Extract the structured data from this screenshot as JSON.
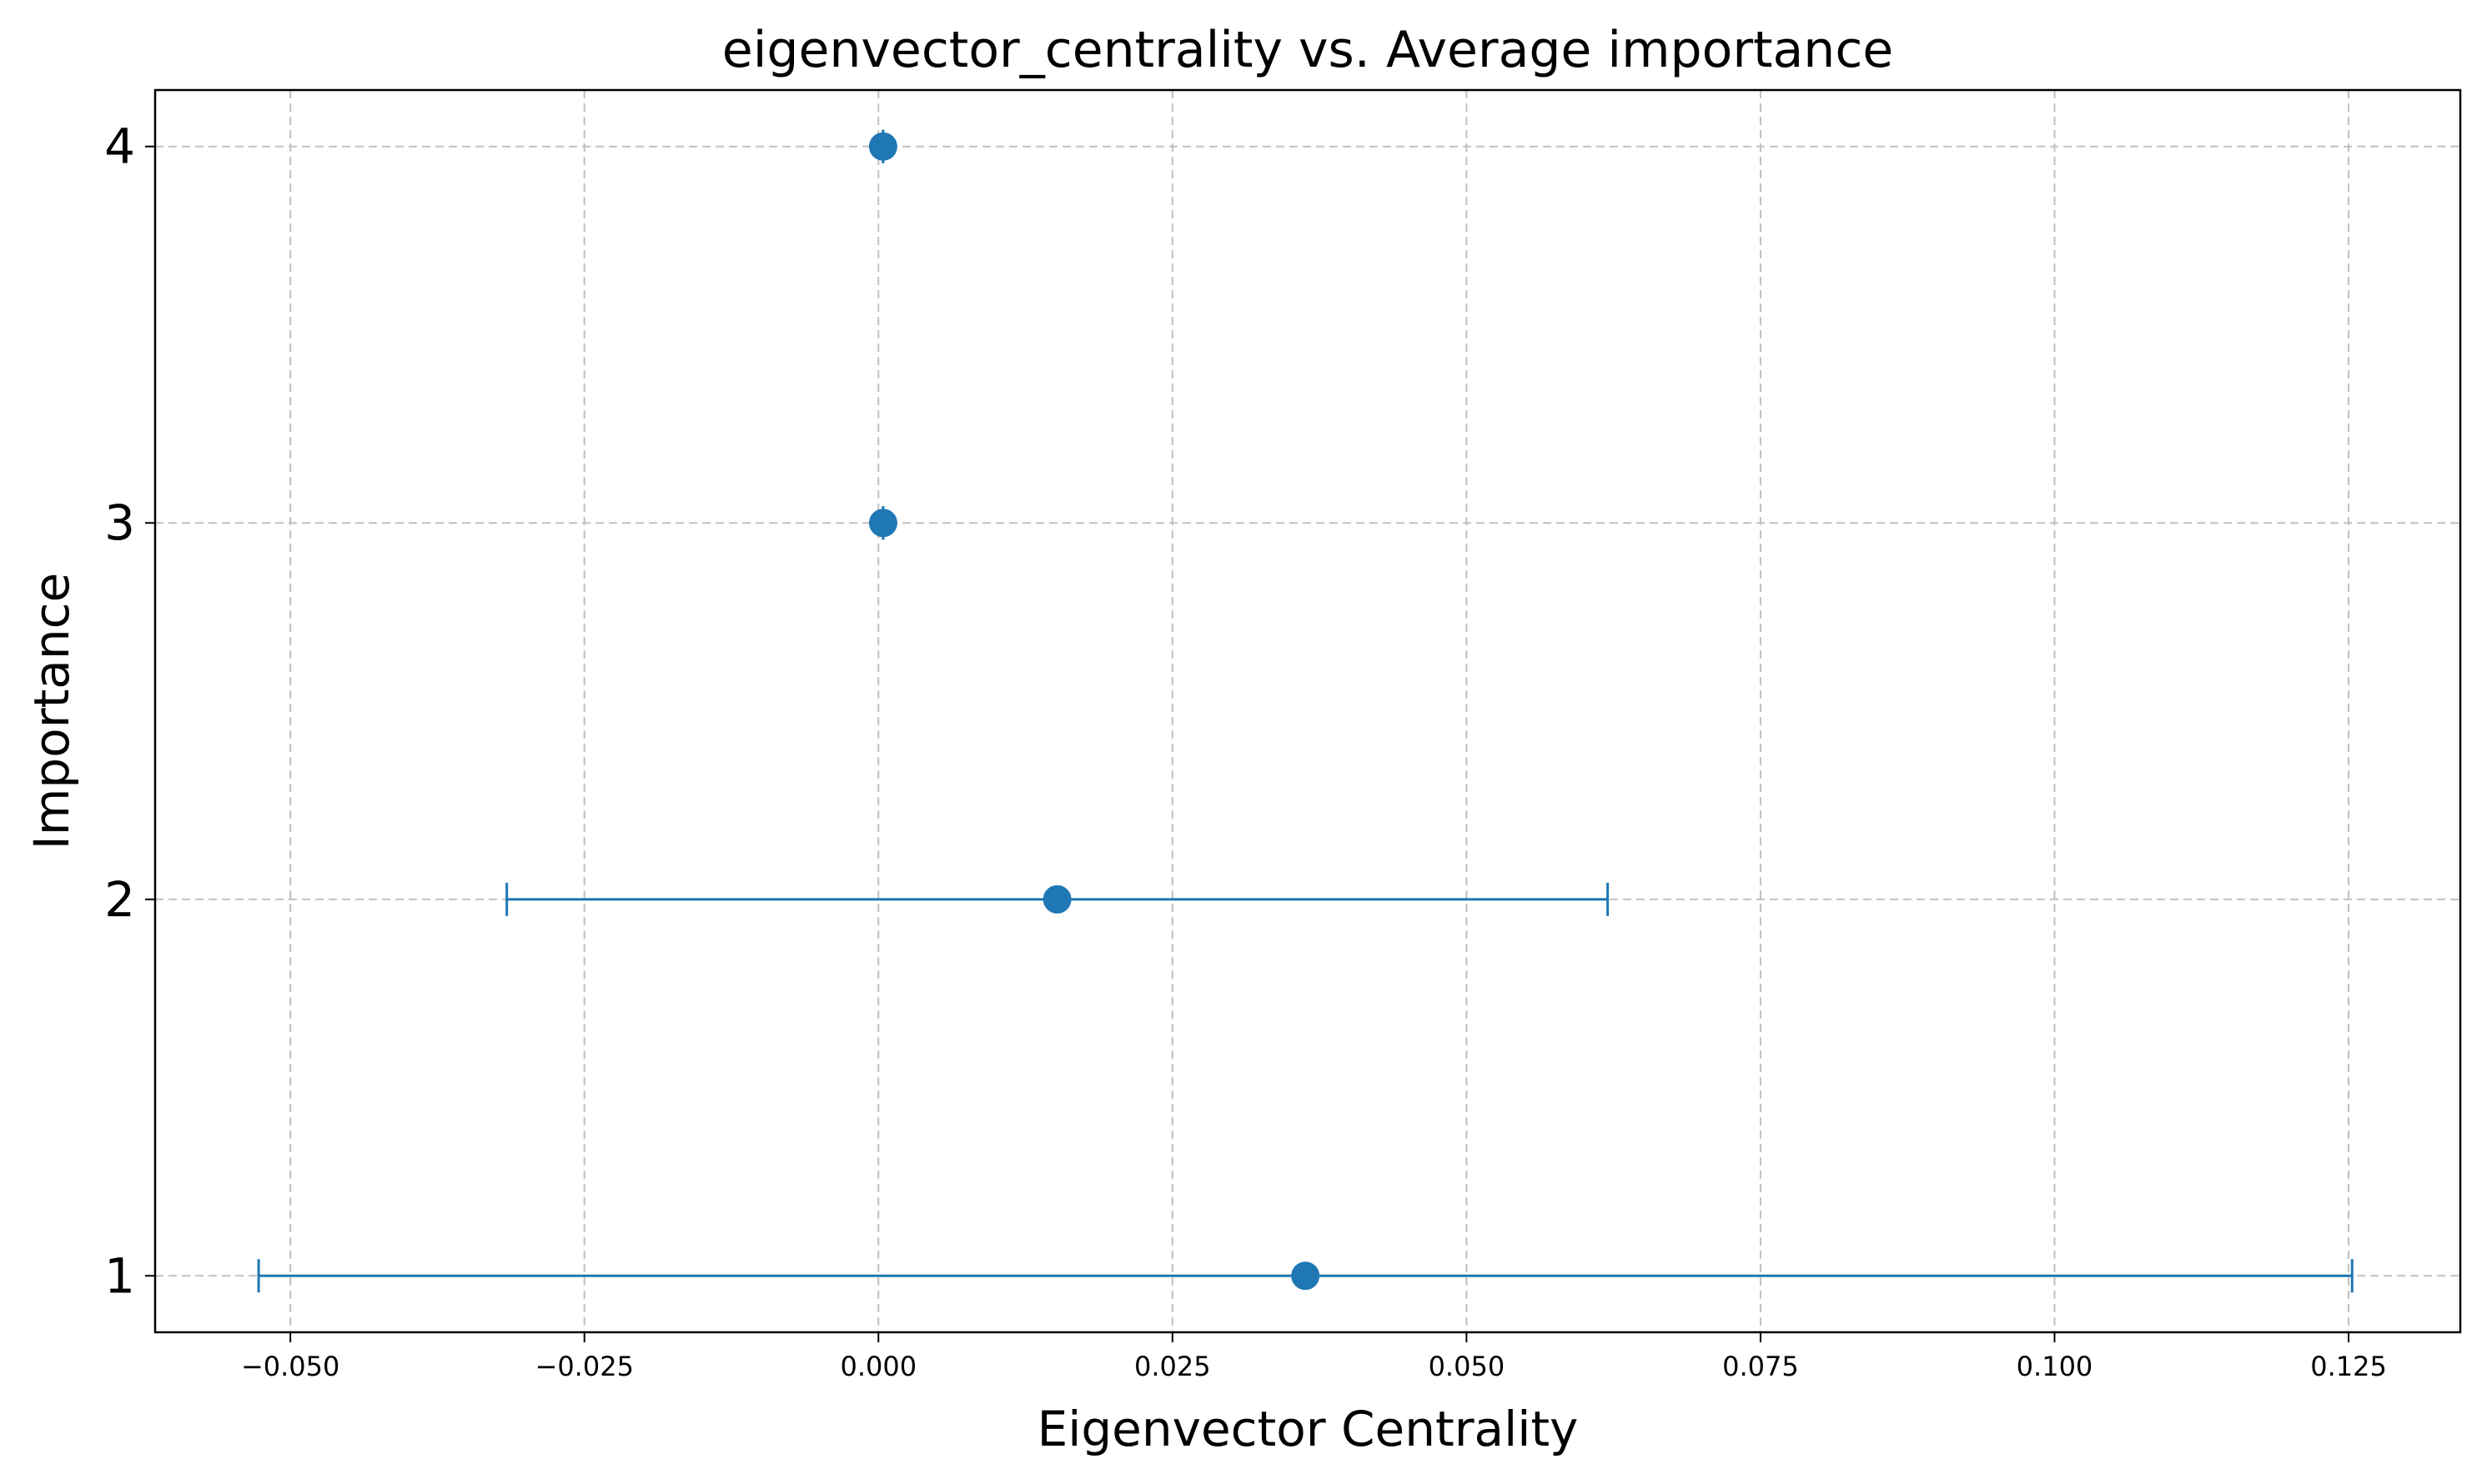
{
  "chart_data": {
    "type": "scatter",
    "title": "eigenvector_centrality vs. Average importance",
    "xlabel": "Eigenvector Centrality",
    "ylabel": "Importance",
    "xlim": [
      -0.0615,
      0.1345
    ],
    "ylim": [
      0.85,
      4.15
    ],
    "x_ticks": [
      -0.05,
      -0.025,
      0.0,
      0.025,
      0.05,
      0.075,
      0.1,
      0.125
    ],
    "x_tick_labels": [
      "−0.050",
      "−0.025",
      "0.000",
      "0.025",
      "0.050",
      "0.075",
      "0.100",
      "0.125"
    ],
    "y_ticks": [
      1,
      2,
      3,
      4
    ],
    "y_tick_labels": [
      "1",
      "2",
      "3",
      "4"
    ],
    "grid": true,
    "color": "#1f77b4",
    "series": [
      {
        "points": [
          {
            "x": 0.0363,
            "y": 1,
            "xerr_low": -0.0527,
            "xerr_high": 0.1253
          },
          {
            "x": 0.0152,
            "y": 2,
            "xerr_low": -0.0316,
            "xerr_high": 0.062
          },
          {
            "x": 0.0004,
            "y": 3,
            "xerr_low": 0.0004,
            "xerr_high": 0.0004
          },
          {
            "x": 0.0004,
            "y": 4,
            "xerr_low": 0.0004,
            "xerr_high": 0.0004
          }
        ]
      }
    ]
  }
}
